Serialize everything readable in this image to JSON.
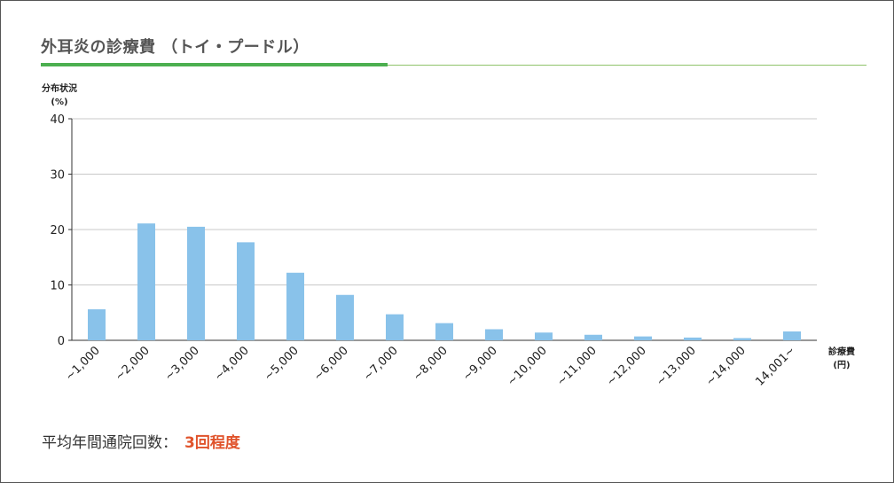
{
  "page_title": "外耳炎の診療費 （トイ・プードル）",
  "summary": {
    "label": "平均年間通院回数：",
    "value": "3回程度"
  },
  "colors": {
    "bar": "#89c2ea",
    "accent": "#4caf50",
    "highlight": "#e0532b"
  },
  "chart_data": {
    "type": "bar",
    "title": "",
    "ylabel_lines": [
      "分布状況",
      "(%)"
    ],
    "xlabel_lines": [
      "診療費",
      "(円)"
    ],
    "ylim": [
      0,
      40
    ],
    "yticks": [
      0,
      10,
      20,
      30,
      40
    ],
    "grid": true,
    "categories": [
      "~1,000",
      "~2,000",
      "~3,000",
      "~4,000",
      "~5,000",
      "~6,000",
      "~7,000",
      "~8,000",
      "~9,000",
      "~10,000",
      "~11,000",
      "~12,000",
      "~13,000",
      "~14,000",
      "14,001~"
    ],
    "values": [
      5.6,
      21.1,
      20.5,
      17.7,
      12.2,
      8.2,
      4.7,
      3.1,
      2.0,
      1.4,
      1.0,
      0.7,
      0.5,
      0.4,
      1.6
    ]
  }
}
